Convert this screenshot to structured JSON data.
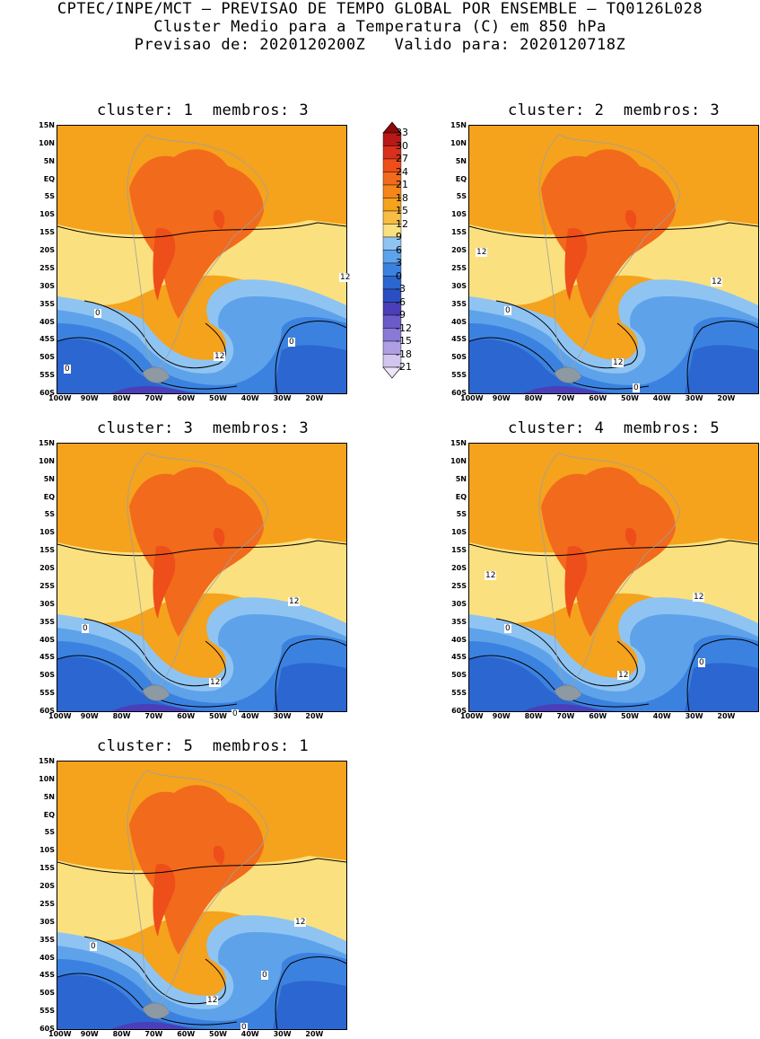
{
  "header": {
    "line1": "CPTEC/INPE/MCT – PREVISAO DE TEMPO GLOBAL POR ENSEMBLE – TQ0126L028",
    "line2": "Cluster Medio para a Temperatura (C) em 850 hPa",
    "line3": "Previsao de: 2020120200Z   Valido para: 2020120718Z"
  },
  "panels": [
    {
      "title": "cluster: 1  membros: 3",
      "contour_labels": [
        "12",
        "12",
        "0",
        "0",
        "0"
      ]
    },
    {
      "title": "cluster: 2  membros: 3",
      "contour_labels": [
        "12",
        "12",
        "12",
        "0",
        "0"
      ]
    },
    {
      "title": "cluster: 3  membros: 3",
      "contour_labels": [
        "12",
        "12",
        "0",
        "0"
      ]
    },
    {
      "title": "cluster: 4  membros: 5",
      "contour_labels": [
        "12",
        "12",
        "12",
        "0",
        "0"
      ]
    },
    {
      "title": "cluster: 5  membros: 1",
      "contour_labels": [
        "12",
        "12",
        "0",
        "0",
        "0"
      ]
    }
  ],
  "lat_ticks": [
    "15N",
    "10N",
    "5N",
    "EQ",
    "5S",
    "10S",
    "15S",
    "20S",
    "25S",
    "30S",
    "35S",
    "40S",
    "45S",
    "50S",
    "55S",
    "60S"
  ],
  "lon_ticks": [
    "100W",
    "90W",
    "80W",
    "70W",
    "60W",
    "50W",
    "40W",
    "30W",
    "20W"
  ],
  "colorbar": {
    "labels": [
      "33",
      "30",
      "27",
      "24",
      "21",
      "18",
      "15",
      "12",
      "9",
      "6",
      "3",
      "0",
      "-3",
      "-6",
      "-9",
      "-12",
      "-15",
      "-18",
      "-21"
    ],
    "colors": [
      "#8b0a0a",
      "#b81818",
      "#d9301d",
      "#ee4e19",
      "#f26a1c",
      "#f5861b",
      "#f5a21c",
      "#f7bd44",
      "#fbe07f",
      "#8fc4f2",
      "#5ea2ea",
      "#3b82e0",
      "#2c66d0",
      "#2b4fc3",
      "#4b3eb8",
      "#6a5bc9",
      "#8a7ad6",
      "#ae9fe3",
      "#d2c6ef",
      "#ece6f8"
    ]
  },
  "legend_colors": {
    "warm": "#f26a1c",
    "mild": "#f5a21c",
    "cool": "#3b82e0",
    "cold": "#2b4fc3"
  }
}
